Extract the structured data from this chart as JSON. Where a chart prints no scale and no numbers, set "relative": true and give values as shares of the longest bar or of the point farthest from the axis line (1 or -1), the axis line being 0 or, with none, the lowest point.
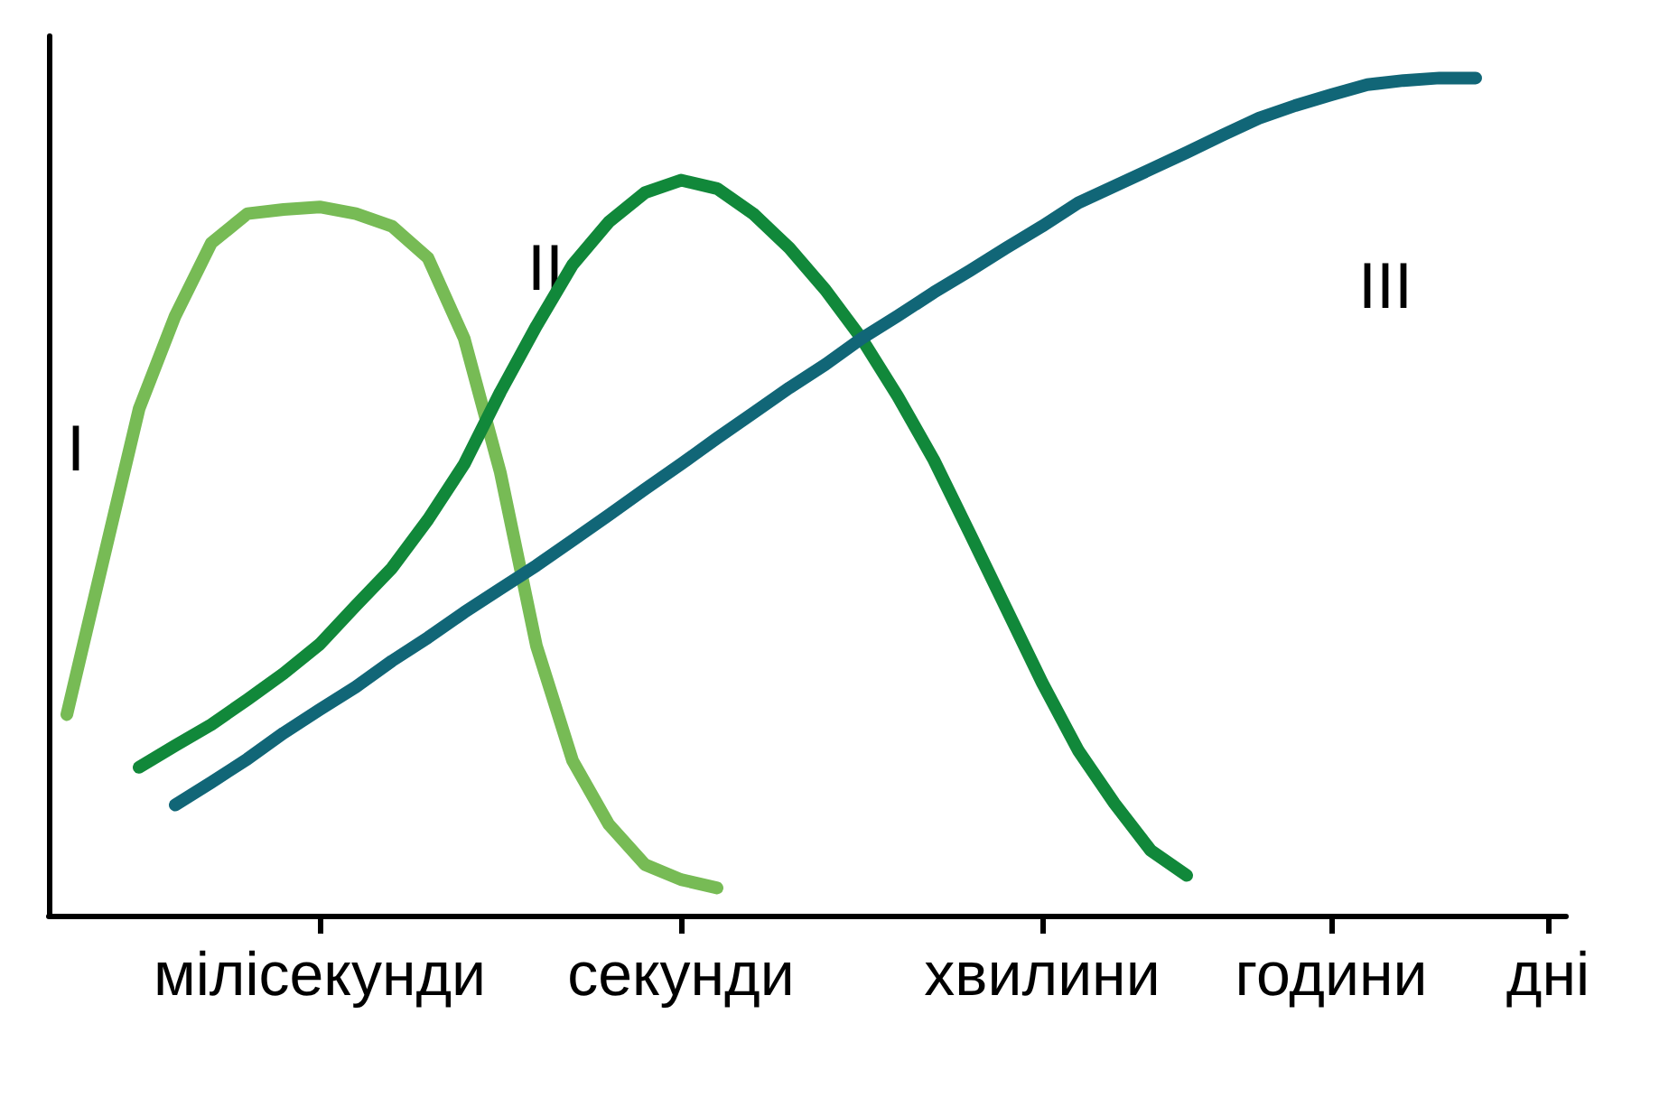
{
  "chart_data": {
    "type": "line",
    "relative": true,
    "grid": false,
    "line_style": "solid",
    "categories": [
      null,
      null,
      null,
      null,
      null,
      null,
      null,
      "мілісекунди",
      null,
      null,
      null,
      null,
      null,
      null,
      null,
      null,
      null,
      "секунди",
      null,
      null,
      null,
      null,
      null,
      null,
      null,
      null,
      null,
      "хвилини",
      null,
      null,
      null,
      null,
      null,
      null,
      null,
      "години",
      null,
      null,
      null,
      null,
      null,
      "дні"
    ],
    "series": [
      {
        "color": "#77bb55",
        "values": [
          0.24,
          0.423,
          0.605,
          0.716,
          0.803,
          0.838,
          0.843,
          0.846,
          0.838,
          0.823,
          0.785,
          0.689,
          0.529,
          0.322,
          0.185,
          0.109,
          0.061,
          0.043,
          0.033,
          null,
          null,
          null,
          null,
          null,
          null,
          null,
          null,
          null,
          null,
          null,
          null,
          null,
          null,
          null,
          null,
          null,
          null,
          null,
          null,
          null,
          null,
          null
        ]
      },
      {
        "color": "#11883a",
        "values": [
          null,
          null,
          0.177,
          0.203,
          0.228,
          0.258,
          0.289,
          0.324,
          0.37,
          0.415,
          0.473,
          0.539,
          0.625,
          0.704,
          0.777,
          0.828,
          0.863,
          0.878,
          0.868,
          0.838,
          0.797,
          0.747,
          0.689,
          0.62,
          0.544,
          0.456,
          0.367,
          0.278,
          0.197,
          0.134,
          0.078,
          0.048,
          null,
          null,
          null,
          null,
          null,
          null,
          null,
          null,
          null,
          null
        ]
      },
      {
        "color": "#116677",
        "values": [
          null,
          null,
          null,
          0.132,
          0.159,
          0.187,
          0.218,
          0.246,
          0.273,
          0.304,
          0.332,
          0.362,
          0.39,
          0.418,
          0.448,
          0.478,
          0.509,
          0.539,
          0.57,
          0.6,
          0.63,
          0.658,
          0.689,
          0.716,
          0.744,
          0.77,
          0.797,
          0.823,
          0.851,
          0.871,
          0.891,
          0.911,
          0.932,
          0.952,
          0.967,
          0.98,
          0.992,
          0.997,
          1,
          1,
          null,
          null
        ]
      }
    ],
    "annotations": [
      "I",
      "II",
      "III"
    ]
  }
}
